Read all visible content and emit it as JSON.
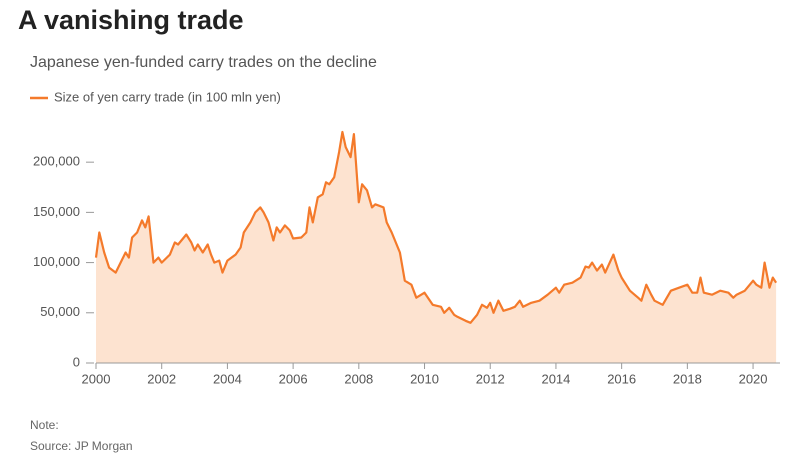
{
  "chart_data": {
    "type": "area",
    "title": "A vanishing trade",
    "subtitle": "Japanese yen-funded carry trades on the decline",
    "note": "Note:",
    "source": "Source: JP Morgan",
    "x": [
      2000,
      2000.1,
      2000.25,
      2000.4,
      2000.6,
      2000.75,
      2000.9,
      2001,
      2001.1,
      2001.25,
      2001.4,
      2001.5,
      2001.6,
      2001.75,
      2001.9,
      2002,
      2002.25,
      2002.4,
      2002.5,
      2002.75,
      2002.9,
      2003,
      2003.1,
      2003.25,
      2003.4,
      2003.5,
      2003.6,
      2003.75,
      2003.85,
      2004,
      2004.25,
      2004.4,
      2004.5,
      2004.7,
      2004.85,
      2005,
      2005.1,
      2005.25,
      2005.4,
      2005.5,
      2005.6,
      2005.75,
      2005.9,
      2006,
      2006.25,
      2006.4,
      2006.5,
      2006.6,
      2006.75,
      2006.9,
      2007,
      2007.1,
      2007.25,
      2007.4,
      2007.5,
      2007.6,
      2007.75,
      2007.85,
      2008,
      2008.1,
      2008.25,
      2008.4,
      2008.5,
      2008.75,
      2008.85,
      2009,
      2009.25,
      2009.4,
      2009.6,
      2009.75,
      2010,
      2010.25,
      2010.5,
      2010.6,
      2010.75,
      2010.9,
      2011,
      2011.25,
      2011.4,
      2011.6,
      2011.75,
      2011.9,
      2012,
      2012.1,
      2012.25,
      2012.4,
      2012.6,
      2012.75,
      2012.9,
      2013,
      2013.25,
      2013.5,
      2013.75,
      2014,
      2014.1,
      2014.25,
      2014.5,
      2014.75,
      2014.9,
      2015,
      2015.1,
      2015.25,
      2015.4,
      2015.5,
      2015.75,
      2015.9,
      2016,
      2016.25,
      2016.5,
      2016.6,
      2016.75,
      2016.9,
      2017,
      2017.25,
      2017.5,
      2017.75,
      2018,
      2018.15,
      2018.3,
      2018.4,
      2018.5,
      2018.75,
      2019,
      2019.25,
      2019.4,
      2019.5,
      2019.75,
      2020,
      2020.1,
      2020.25,
      2020.35,
      2020.5,
      2020.6,
      2020.7
    ],
    "series": [
      {
        "name": "Size of yen carry trade (in 100 mln yen)",
        "color": "#f47a2b",
        "fill": "#fde3d0",
        "values": [
          105000,
          130000,
          110000,
          95000,
          90000,
          100000,
          110000,
          105000,
          125000,
          130000,
          142000,
          135000,
          146000,
          100000,
          105000,
          100000,
          108000,
          120000,
          118000,
          128000,
          120000,
          112000,
          118000,
          110000,
          118000,
          108000,
          100000,
          102000,
          90000,
          102000,
          108000,
          115000,
          130000,
          140000,
          150000,
          155000,
          150000,
          140000,
          122000,
          135000,
          130000,
          137000,
          132000,
          124000,
          125000,
          130000,
          155000,
          140000,
          165000,
          168000,
          180000,
          178000,
          185000,
          210000,
          230000,
          215000,
          205000,
          228000,
          160000,
          178000,
          172000,
          155000,
          158000,
          155000,
          140000,
          130000,
          110000,
          82000,
          78000,
          65000,
          70000,
          58000,
          56000,
          50000,
          55000,
          48000,
          46000,
          42000,
          40000,
          48000,
          58000,
          55000,
          60000,
          50000,
          62000,
          52000,
          54000,
          56000,
          62000,
          56000,
          60000,
          62000,
          68000,
          75000,
          70000,
          78000,
          80000,
          85000,
          96000,
          95000,
          100000,
          92000,
          98000,
          90000,
          108000,
          92000,
          85000,
          72000,
          65000,
          62000,
          78000,
          68000,
          62000,
          58000,
          72000,
          75000,
          78000,
          70000,
          70000,
          85000,
          70000,
          68000,
          72000,
          70000,
          65000,
          68000,
          72000,
          82000,
          78000,
          75000,
          100000,
          75000,
          85000,
          80000
        ]
      }
    ],
    "xlim": [
      2000,
      2020.82
    ],
    "xticks": [
      2000,
      2002,
      2004,
      2006,
      2008,
      2010,
      2012,
      2014,
      2016,
      2018,
      2020
    ],
    "ylim": [
      0,
      240000
    ],
    "yticks": [
      0,
      {
        "value": 50000,
        "label": "50,000"
      },
      {
        "value": 100000,
        "label": "100,000"
      },
      {
        "value": 150000,
        "label": "150,000"
      },
      {
        "value": 200000,
        "label": "200,000"
      }
    ]
  }
}
